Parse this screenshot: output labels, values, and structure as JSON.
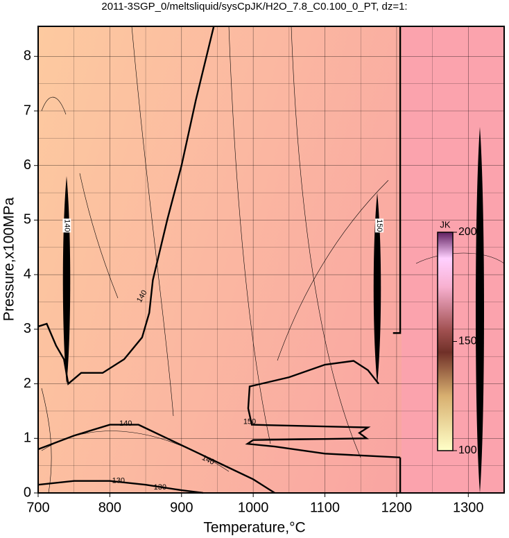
{
  "chart_data": {
    "type": "contour",
    "title": "2011-3SGP_0/meltsliquid/sysCpJK/H2O_7.8_C0.100_0_PT, dz=1:",
    "x_label": "Temperature,°C",
    "y_label": "Pressure,x100MPa",
    "xlim": [
      700,
      1350
    ],
    "ylim": [
      0,
      8.55
    ],
    "xticks": [
      700,
      800,
      900,
      1000,
      1100,
      1200,
      1300
    ],
    "yticks": [
      0,
      1,
      2,
      3,
      4,
      5,
      6,
      7,
      8
    ],
    "x_minor_ticks": [
      750,
      850,
      950,
      1050,
      1150,
      1250
    ],
    "y_minor_ticks": [
      0.5,
      1.5,
      2.5,
      3.5,
      4.5,
      5.5,
      6.5,
      7.5
    ],
    "grid": true,
    "contours": [
      {
        "x": [
          700,
          712,
          725,
          736,
          742,
          760,
          790,
          820,
          845,
          855,
          860,
          880,
          900,
          920,
          945
        ],
        "y": [
          3.05,
          3.1,
          2.7,
          2.45,
          2.0,
          2.2,
          2.2,
          2.45,
          2.85,
          3.3,
          3.9,
          5.0,
          6.0,
          7.2,
          8.55
        ]
      },
      {
        "x": [
          700,
          750,
          800,
          840,
          880,
          920,
          960,
          1000,
          1030
        ],
        "y": [
          0.8,
          1.05,
          1.25,
          1.25,
          1.0,
          0.75,
          0.5,
          0.25,
          0.0
        ]
      },
      {
        "x": [
          1175,
          1160,
          1140,
          1100,
          1050,
          995,
          993,
          998,
          1160,
          1148,
          1158,
          1000,
          992,
          1030,
          1100,
          1205
        ],
        "y": [
          2.0,
          2.25,
          2.42,
          2.35,
          2.12,
          1.95,
          1.55,
          1.25,
          1.2,
          1.1,
          1.0,
          0.97,
          0.9,
          0.85,
          0.72,
          0.65
        ]
      },
      {
        "x": [
          700,
          750,
          800,
          850,
          900,
          930
        ],
        "y": [
          0.15,
          0.22,
          0.22,
          0.15,
          0.05,
          0.0
        ]
      },
      {
        "x": [
          1205,
          1205,
          1195
        ],
        "y": [
          8.55,
          2.93,
          2.93
        ]
      },
      {
        "x": [
          1205,
          1205
        ],
        "y": [
          0.65,
          0.0
        ]
      }
    ],
    "contour_labels": [
      {
        "level": 140,
        "x": 740,
        "y": 4.9
      },
      {
        "level": 150,
        "x": 1176,
        "y": 4.9
      },
      {
        "level": 140,
        "x": 845,
        "y": 3.6
      },
      {
        "level": 140,
        "x": 822,
        "y": 1.27
      },
      {
        "level": 140,
        "x": 937,
        "y": 0.6
      },
      {
        "level": 130,
        "x": 812,
        "y": 0.22
      },
      {
        "level": 130,
        "x": 870,
        "y": 0.1
      },
      {
        "level": 150,
        "x": 995,
        "y": 1.3
      }
    ],
    "colorbar": {
      "label": "JK",
      "lim": [
        100,
        200
      ],
      "ticks": [
        100,
        150,
        200
      ]
    }
  }
}
